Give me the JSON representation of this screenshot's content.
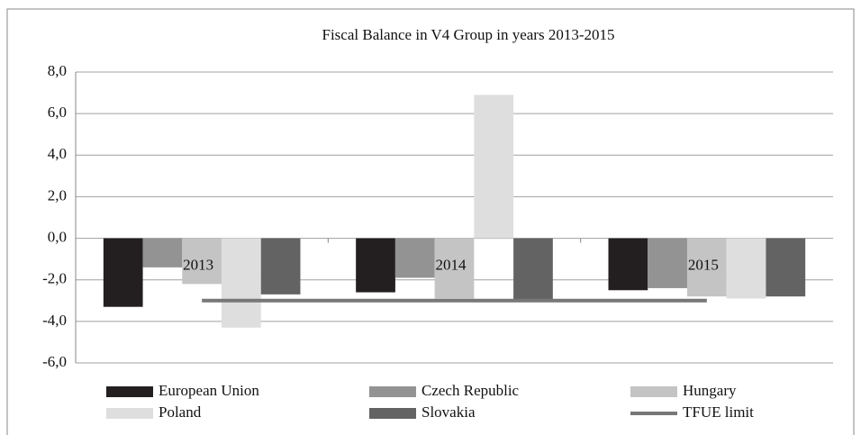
{
  "chart_data": {
    "type": "bar",
    "title": "Fiscal Balance in V4 Group in years 2013-2015",
    "categories": [
      "2013",
      "2014",
      "2015"
    ],
    "series": [
      {
        "name": "European Union",
        "color": "#231f20",
        "values": [
          -3.3,
          -2.6,
          -2.5
        ]
      },
      {
        "name": "Czech Republic",
        "color": "#939393",
        "values": [
          -1.4,
          -1.9,
          -2.4
        ]
      },
      {
        "name": "Hungary",
        "color": "#c4c4c4",
        "values": [
          -2.2,
          -2.9,
          -2.8
        ]
      },
      {
        "name": "Poland",
        "color": "#dedede",
        "values": [
          -4.3,
          6.9,
          -2.9
        ]
      },
      {
        "name": "Slovakia",
        "color": "#636363",
        "values": [
          -2.7,
          -3.0,
          -2.8
        ]
      },
      {
        "name": "TFUE limit",
        "color": "#777777",
        "type": "line",
        "values": [
          -3,
          -3,
          -3
        ]
      }
    ],
    "ylim": [
      -6,
      8
    ],
    "yticks": [
      {
        "value": -6,
        "label": "-6,0"
      },
      {
        "value": -4,
        "label": "-4,0"
      },
      {
        "value": -2,
        "label": "-2,0"
      },
      {
        "value": 0,
        "label": "0,0"
      },
      {
        "value": 2,
        "label": "2,0"
      },
      {
        "value": 4,
        "label": "4,0"
      },
      {
        "value": 6,
        "label": "6,0"
      },
      {
        "value": 8,
        "label": "8,0"
      }
    ],
    "grid": true
  }
}
